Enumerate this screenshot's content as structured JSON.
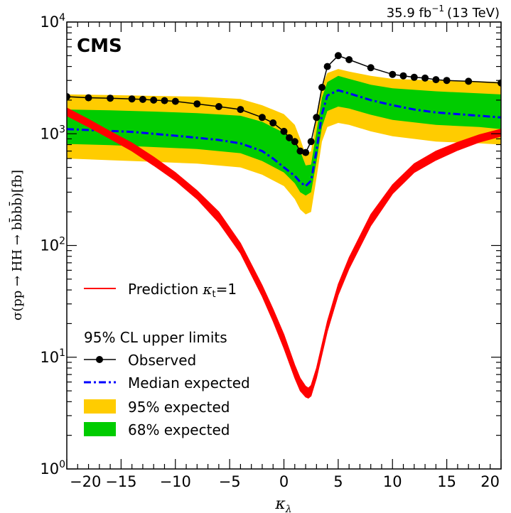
{
  "chart_data": {
    "type": "line",
    "experiment_label": "CMS",
    "lumi_label": {
      "value": "35.9 fb",
      "superscript": "−1",
      "energy": "(13 TeV)"
    },
    "xlabel": {
      "main": "κ",
      "sub": "λ"
    },
    "ylabel": {
      "text": "σ(pp → HH → bb̄bb̄)[fb]"
    },
    "xlim": [
      -20,
      20
    ],
    "ylim": [
      1,
      10000
    ],
    "yscale": "log",
    "x_ticks": [
      -20,
      -15,
      -10,
      -5,
      0,
      5,
      10,
      15,
      20
    ],
    "x_tick_labels": [
      "−20",
      "−15",
      "−10",
      "−5",
      "0",
      "5",
      "10",
      "15",
      "20"
    ],
    "y_ticks": [
      1,
      10,
      100,
      1000,
      10000
    ],
    "y_tick_labels": [
      {
        "base": "10",
        "exp": "0"
      },
      {
        "base": "10",
        "exp": "1"
      },
      {
        "base": "10",
        "exp": "2"
      },
      {
        "base": "10",
        "exp": "3"
      },
      {
        "base": "10",
        "exp": "4"
      }
    ],
    "grid": false,
    "legend": {
      "prediction_label": "Prediction",
      "prediction_kappa": "κ",
      "prediction_kappa_sub": "t",
      "prediction_value": "=1",
      "limits_title": "95% CL upper limits",
      "entries": [
        "Observed",
        "Median expected",
        "95% expected",
        "68% expected"
      ]
    },
    "colors": {
      "observed": "#000000",
      "median": "#0000ff",
      "band95": "#ffcc00",
      "band68": "#00cc00",
      "prediction": "#ff0000"
    },
    "observed": {
      "x": [
        -20,
        -18,
        -16,
        -14,
        -13,
        -12,
        -11,
        -10,
        -8,
        -6,
        -4,
        -2,
        -1,
        0,
        0.5,
        1,
        1.5,
        2,
        2.5,
        3,
        3.5,
        4,
        5,
        6,
        8,
        10,
        11,
        12,
        13,
        14,
        15,
        17,
        20
      ],
      "y": [
        2150,
        2100,
        2080,
        2050,
        2030,
        2000,
        1980,
        1950,
        1850,
        1750,
        1650,
        1400,
        1250,
        1050,
        920,
        850,
        700,
        680,
        850,
        1400,
        2600,
        4000,
        5000,
        4600,
        3900,
        3400,
        3300,
        3200,
        3150,
        3050,
        3000,
        2950,
        2850
      ]
    },
    "median_expected": {
      "x": [
        -20,
        -18,
        -16,
        -14,
        -12,
        -10,
        -8,
        -6,
        -4,
        -2,
        -1,
        0,
        1,
        1.5,
        2,
        2.5,
        3,
        3.5,
        4,
        5,
        6,
        8,
        10,
        12,
        14,
        16,
        18,
        20
      ],
      "y": [
        1100,
        1080,
        1060,
        1040,
        1000,
        960,
        920,
        880,
        820,
        700,
        600,
        500,
        420,
        370,
        340,
        380,
        700,
        1500,
        2200,
        2450,
        2300,
        2000,
        1800,
        1650,
        1550,
        1500,
        1450,
        1400
      ]
    },
    "band_95": {
      "x": [
        -20,
        -16,
        -12,
        -8,
        -4,
        -2,
        0,
        1,
        1.5,
        2,
        2.5,
        3,
        3.5,
        4,
        5,
        6,
        8,
        10,
        14,
        18,
        20
      ],
      "low": [
        600,
        580,
        560,
        540,
        500,
        430,
        340,
        260,
        210,
        190,
        200,
        400,
        850,
        1150,
        1250,
        1200,
        1050,
        950,
        850,
        820,
        800
      ],
      "high": [
        2250,
        2220,
        2180,
        2150,
        2050,
        1800,
        1500,
        1200,
        900,
        650,
        700,
        1400,
        2700,
        3500,
        3800,
        3600,
        3300,
        3100,
        3000,
        2950,
        2900
      ]
    },
    "band_68": {
      "x": [
        -20,
        -16,
        -12,
        -8,
        -4,
        -2,
        0,
        1,
        1.5,
        2,
        2.5,
        3,
        3.5,
        4,
        5,
        6,
        8,
        10,
        14,
        18,
        20
      ],
      "low": [
        810,
        790,
        760,
        730,
        670,
        570,
        450,
        360,
        300,
        280,
        300,
        560,
        1150,
        1600,
        1750,
        1680,
        1480,
        1330,
        1200,
        1150,
        1100
      ],
      "high": [
        1650,
        1620,
        1580,
        1530,
        1450,
        1280,
        1020,
        850,
        700,
        520,
        530,
        1050,
        2100,
        2900,
        3300,
        3100,
        2750,
        2550,
        2400,
        2300,
        2250
      ]
    },
    "prediction_band": {
      "x": [
        -20,
        -18,
        -16,
        -14,
        -12,
        -10,
        -8,
        -6,
        -4,
        -2,
        -1,
        0,
        1,
        1.5,
        2,
        2.25,
        2.5,
        3,
        4,
        5,
        6,
        8,
        10,
        12,
        14,
        16,
        18,
        20
      ],
      "low": [
        1450,
        1150,
        900,
        700,
        520,
        380,
        260,
        160,
        85,
        35,
        21,
        12,
        6.5,
        5,
        4.4,
        4.3,
        4.5,
        6.5,
        17,
        36,
        62,
        150,
        290,
        450,
        580,
        710,
        840,
        950
      ],
      "high": [
        1700,
        1350,
        1050,
        830,
        620,
        450,
        310,
        200,
        105,
        44,
        27,
        16,
        8.5,
        6.5,
        5.5,
        5.3,
        5.6,
        8,
        21,
        45,
        78,
        190,
        350,
        540,
        700,
        840,
        980,
        1100
      ]
    }
  }
}
